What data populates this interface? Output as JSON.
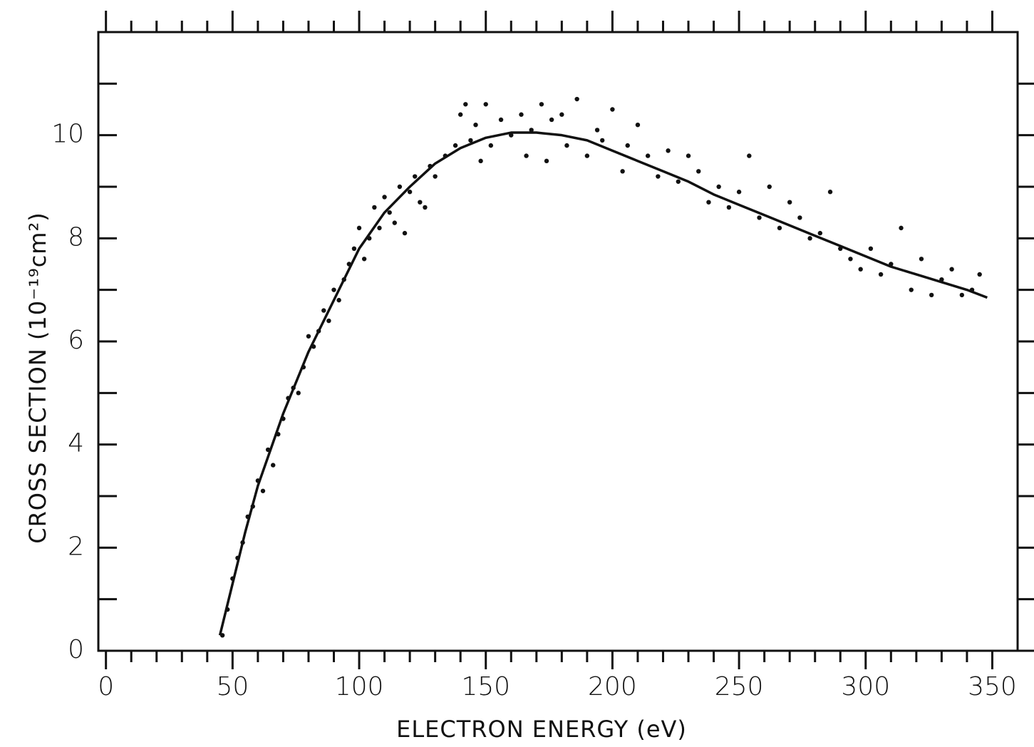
{
  "chart_data": {
    "type": "scatter",
    "xlabel": "ELECTRON ENERGY (eV)",
    "ylabel": "CROSS SECTION (10⁻¹⁹cm²)",
    "xlim": [
      -3,
      360
    ],
    "ylim": [
      0,
      12
    ],
    "xticks": [
      0,
      50,
      100,
      150,
      200,
      250,
      300,
      350
    ],
    "yticks": [
      0,
      2,
      4,
      6,
      8,
      10
    ],
    "xminorticks": [
      10,
      20,
      30,
      40,
      60,
      70,
      80,
      90,
      110,
      120,
      130,
      140,
      160,
      170,
      180,
      190,
      210,
      220,
      230,
      240,
      260,
      270,
      280,
      290,
      310,
      320,
      330,
      340
    ],
    "yminorticks": [
      1,
      3,
      5,
      7,
      9,
      11
    ],
    "grid": false,
    "series": [
      {
        "type": "line",
        "color": "#111111",
        "x": [
          45,
          50,
          55,
          60,
          65,
          70,
          80,
          90,
          100,
          110,
          120,
          130,
          140,
          150,
          160,
          170,
          180,
          190,
          200,
          210,
          220,
          230,
          240,
          250,
          260,
          270,
          280,
          290,
          300,
          310,
          320,
          330,
          340,
          348
        ],
        "values": [
          0.3,
          1.3,
          2.3,
          3.2,
          3.9,
          4.6,
          5.8,
          6.8,
          7.8,
          8.5,
          9.0,
          9.45,
          9.75,
          9.95,
          10.05,
          10.05,
          10.0,
          9.9,
          9.7,
          9.5,
          9.3,
          9.1,
          8.85,
          8.65,
          8.45,
          8.25,
          8.05,
          7.85,
          7.65,
          7.45,
          7.3,
          7.15,
          7.0,
          6.85
        ]
      },
      {
        "type": "scatter",
        "color": "#111111",
        "x": [
          46,
          48,
          50,
          52,
          54,
          56,
          58,
          60,
          62,
          64,
          66,
          68,
          70,
          72,
          74,
          76,
          78,
          80,
          82,
          84,
          86,
          88,
          90,
          92,
          94,
          96,
          98,
          100,
          102,
          104,
          106,
          108,
          110,
          112,
          114,
          116,
          118,
          120,
          122,
          124,
          126,
          128,
          130,
          134,
          138,
          140,
          142,
          144,
          146,
          148,
          150,
          152,
          156,
          160,
          164,
          166,
          168,
          172,
          174,
          176,
          180,
          182,
          186,
          190,
          194,
          196,
          200,
          204,
          206,
          210,
          214,
          218,
          222,
          226,
          230,
          234,
          238,
          242,
          246,
          250,
          254,
          258,
          262,
          266,
          270,
          274,
          278,
          282,
          286,
          290,
          294,
          298,
          302,
          306,
          310,
          314,
          318,
          322,
          326,
          330,
          334,
          338,
          342,
          345
        ],
        "values": [
          0.3,
          0.8,
          1.4,
          1.8,
          2.1,
          2.6,
          2.8,
          3.3,
          3.1,
          3.9,
          3.6,
          4.2,
          4.5,
          4.9,
          5.1,
          5.0,
          5.5,
          6.1,
          5.9,
          6.2,
          6.6,
          6.4,
          7.0,
          6.8,
          7.2,
          7.5,
          7.8,
          8.2,
          7.6,
          8.0,
          8.6,
          8.2,
          8.8,
          8.5,
          8.3,
          9.0,
          8.1,
          8.9,
          9.2,
          8.7,
          8.6,
          9.4,
          9.2,
          9.6,
          9.8,
          10.4,
          10.6,
          9.9,
          10.2,
          9.5,
          10.6,
          9.8,
          10.3,
          10.0,
          10.4,
          9.6,
          10.1,
          10.6,
          9.5,
          10.3,
          10.4,
          9.8,
          10.7,
          9.6,
          10.1,
          9.9,
          10.5,
          9.3,
          9.8,
          10.2,
          9.6,
          9.2,
          9.7,
          9.1,
          9.6,
          9.3,
          8.7,
          9.0,
          8.6,
          8.9,
          9.6,
          8.4,
          9.0,
          8.2,
          8.7,
          8.4,
          8.0,
          8.1,
          8.9,
          7.8,
          7.6,
          7.4,
          7.8,
          7.3,
          7.5,
          8.2,
          7.0,
          7.6,
          6.9,
          7.2,
          7.4,
          6.9,
          7.0,
          7.3
        ]
      }
    ]
  }
}
